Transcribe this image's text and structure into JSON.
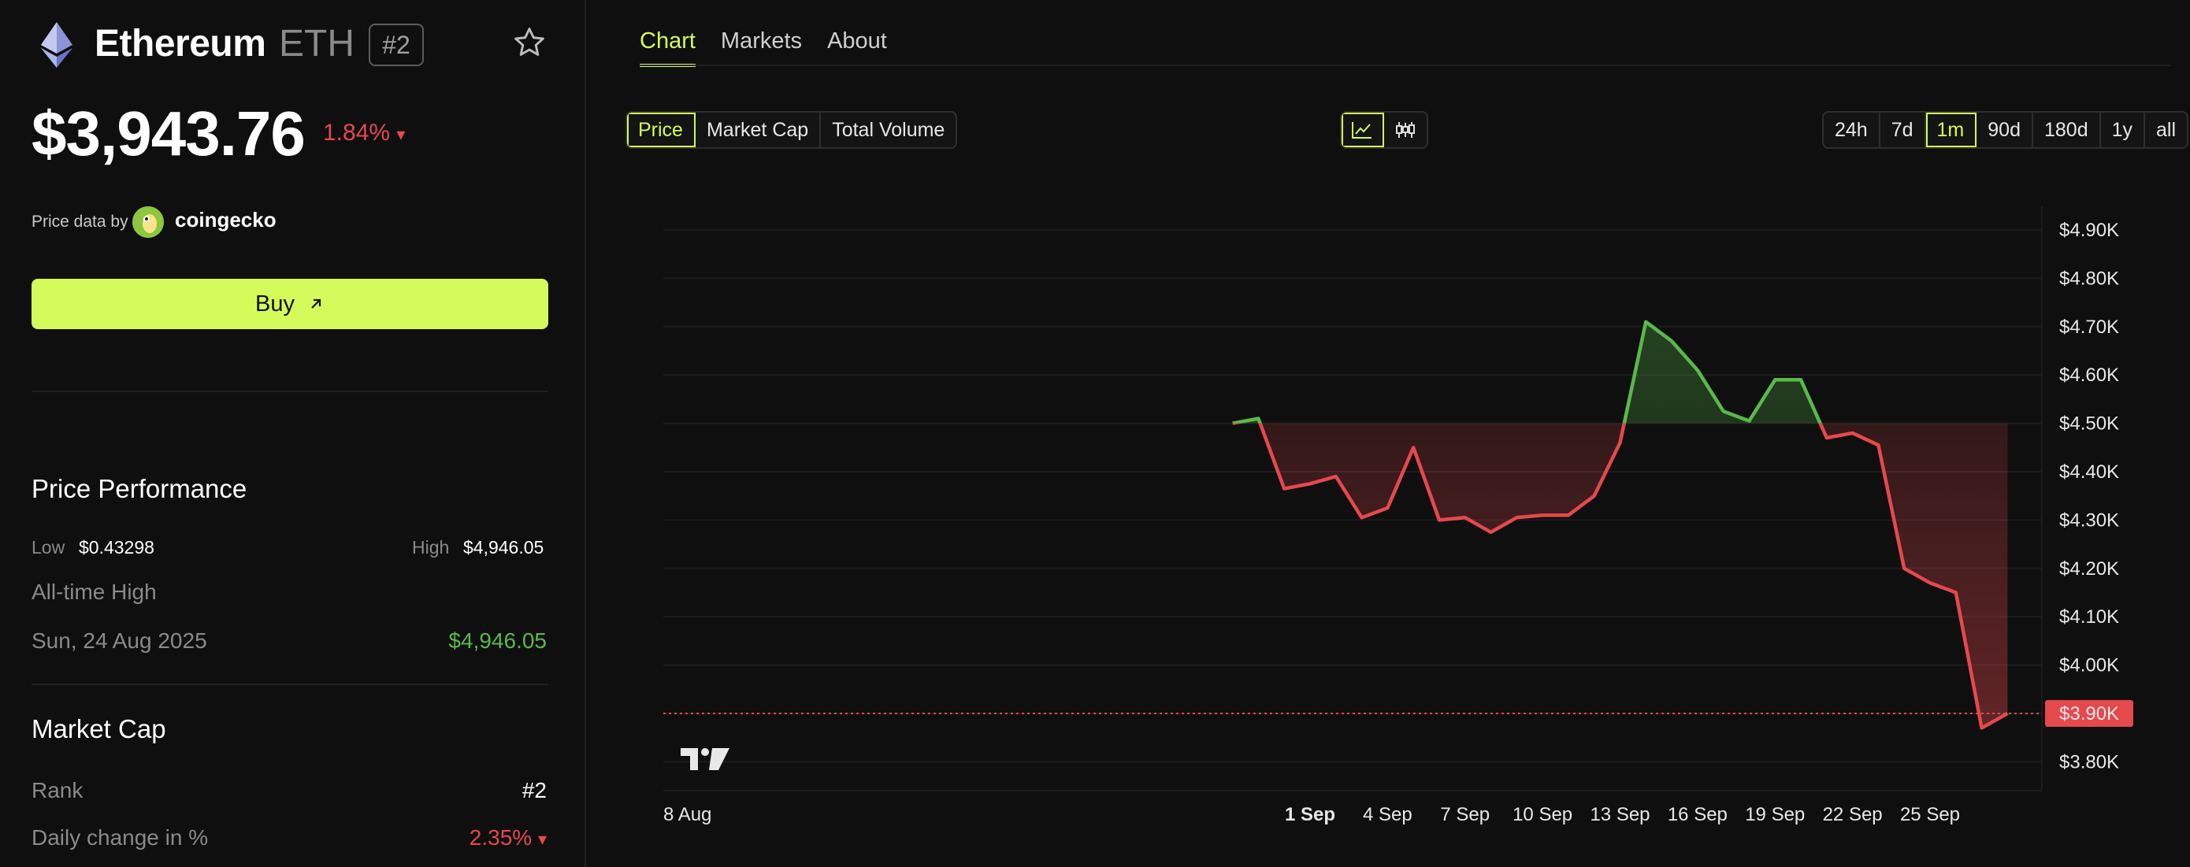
{
  "asset": {
    "name": "Ethereum",
    "symbol": "ETH",
    "rank": "#2",
    "price": "$3,943.76",
    "change": "1.84%",
    "change_arrow": "▾",
    "price_data_label": "Price data by",
    "provider": "coingecko",
    "buy_label": "Buy",
    "buy_icon": "arrow-up-right-icon"
  },
  "performance": {
    "title": "Price Performance",
    "low_label": "Low",
    "low_value": "$0.43298",
    "high_label": "High",
    "high_value": "$4,946.05",
    "ath_label": "All-time High",
    "ath_date": "Sun, 24 Aug 2025",
    "ath_value": "$4,946.05"
  },
  "market_cap": {
    "title": "Market Cap",
    "rank_label": "Rank",
    "rank_value": "#2",
    "daily_label": "Daily change in %",
    "daily_value": "2.35%",
    "daily_arrow": "▾"
  },
  "tabs": [
    "Chart",
    "Markets",
    "About"
  ],
  "metric_options": [
    "Price",
    "Market Cap",
    "Total Volume"
  ],
  "range_options": [
    "24h",
    "7d",
    "1m",
    "90d",
    "180d",
    "1y",
    "all"
  ],
  "colors": {
    "accent": "#d4fb5a",
    "up": "#59b94a",
    "down": "#e5484d",
    "background": "#0f0f0f"
  },
  "chart_data": {
    "type": "line",
    "baseline": 4500,
    "current_price_label": "$3.90K",
    "current_price": 3900,
    "ylim": [
      3750,
      4950
    ],
    "y_ticks": [
      {
        "v": 4900,
        "label": "$4.90K"
      },
      {
        "v": 4800,
        "label": "$4.80K"
      },
      {
        "v": 4700,
        "label": "$4.70K"
      },
      {
        "v": 4600,
        "label": "$4.60K"
      },
      {
        "v": 4500,
        "label": "$4.50K"
      },
      {
        "v": 4400,
        "label": "$4.40K"
      },
      {
        "v": 4300,
        "label": "$4.30K"
      },
      {
        "v": 4200,
        "label": "$4.20K"
      },
      {
        "v": 4100,
        "label": "$4.10K"
      },
      {
        "v": 4000,
        "label": "$4.00K"
      },
      {
        "v": 3800,
        "label": "$3.80K"
      }
    ],
    "x_ticks": [
      {
        "d": "2025-08-08",
        "label": "8 Aug",
        "bold": false
      },
      {
        "d": "2025-09-01",
        "label": "1 Sep",
        "bold": true
      },
      {
        "d": "2025-09-04",
        "label": "4 Sep",
        "bold": false
      },
      {
        "d": "2025-09-07",
        "label": "7 Sep",
        "bold": false
      },
      {
        "d": "2025-09-10",
        "label": "10 Sep",
        "bold": false
      },
      {
        "d": "2025-09-13",
        "label": "13 Sep",
        "bold": false
      },
      {
        "d": "2025-09-16",
        "label": "16 Sep",
        "bold": false
      },
      {
        "d": "2025-09-19",
        "label": "19 Sep",
        "bold": false
      },
      {
        "d": "2025-09-22",
        "label": "22 Sep",
        "bold": false
      },
      {
        "d": "2025-09-25",
        "label": "25 Sep",
        "bold": false
      }
    ],
    "points": [
      {
        "d": "2025-08-29",
        "v": 4500
      },
      {
        "d": "2025-08-30",
        "v": 4510
      },
      {
        "d": "2025-08-31",
        "v": 4365
      },
      {
        "d": "2025-09-01",
        "v": 4375
      },
      {
        "d": "2025-09-02",
        "v": 4390
      },
      {
        "d": "2025-09-03",
        "v": 4305
      },
      {
        "d": "2025-09-04",
        "v": 4325
      },
      {
        "d": "2025-09-05",
        "v": 4450
      },
      {
        "d": "2025-09-06",
        "v": 4300
      },
      {
        "d": "2025-09-07",
        "v": 4305
      },
      {
        "d": "2025-09-08",
        "v": 4275
      },
      {
        "d": "2025-09-09",
        "v": 4305
      },
      {
        "d": "2025-09-10",
        "v": 4310
      },
      {
        "d": "2025-09-11",
        "v": 4310
      },
      {
        "d": "2025-09-12",
        "v": 4350
      },
      {
        "d": "2025-09-13",
        "v": 4460
      },
      {
        "d": "2025-09-14",
        "v": 4710
      },
      {
        "d": "2025-09-15",
        "v": 4670
      },
      {
        "d": "2025-09-16",
        "v": 4610
      },
      {
        "d": "2025-09-17",
        "v": 4525
      },
      {
        "d": "2025-09-18",
        "v": 4505
      },
      {
        "d": "2025-09-19",
        "v": 4590
      },
      {
        "d": "2025-09-20",
        "v": 4590
      },
      {
        "d": "2025-09-21",
        "v": 4470
      },
      {
        "d": "2025-09-22",
        "v": 4480
      },
      {
        "d": "2025-09-23",
        "v": 4455
      },
      {
        "d": "2025-09-24",
        "v": 4200
      },
      {
        "d": "2025-09-25",
        "v": 4170
      },
      {
        "d": "2025-09-26",
        "v": 4150
      },
      {
        "d": "2025-09-27",
        "v": 3870
      },
      {
        "d": "2025-09-28",
        "v": 3900
      }
    ],
    "grid": true
  }
}
